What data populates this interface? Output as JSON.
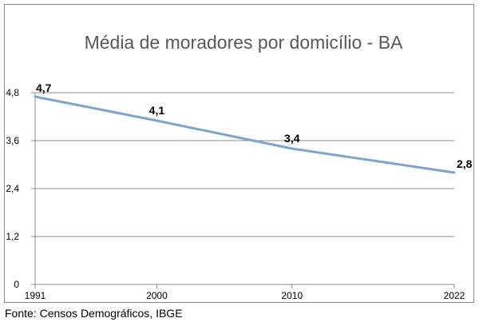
{
  "chart_data": {
    "type": "line",
    "title": "Média de moradores por domicílio - BA",
    "xlabel": "",
    "ylabel": "",
    "categories": [
      "1991",
      "2000",
      "2010",
      "2022"
    ],
    "x": [
      1991,
      2000,
      2010,
      2022
    ],
    "series": [
      {
        "values": [
          4.7,
          4.1,
          3.4,
          2.8
        ],
        "data_labels": [
          "4,7",
          "4,1",
          "3,4",
          "2,8"
        ],
        "color": "#7ea3cf"
      }
    ],
    "ylim": [
      0,
      4.8
    ],
    "yticks": [
      0,
      1.2,
      2.4,
      3.6,
      4.8
    ],
    "ytick_labels": [
      "0",
      "1,2",
      "2,4",
      "3,6",
      "4,8"
    ],
    "xtick_labels": [
      "1991",
      "2000",
      "2010",
      "2022"
    ],
    "grid": true,
    "legend": "none"
  },
  "source": "Fonte: Censos Demográficos, IBGE"
}
